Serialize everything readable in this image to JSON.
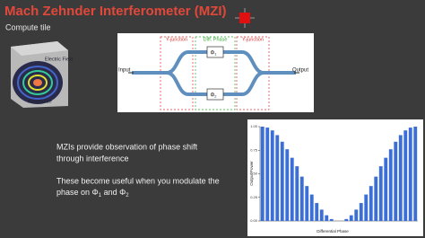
{
  "header": {
    "title": "Mach Zehnder Interferometer (MZI)",
    "subtitle": "Compute tile"
  },
  "waveguide": {
    "field_label": "Electric Field",
    "guide_label": "Waveguide"
  },
  "diagram": {
    "input": "Input",
    "output": "Output",
    "section_1": "Y-junction",
    "section_2": "Diff. Phase",
    "section_3": "Y-junction",
    "phase_1": [
      "Φ",
      "1"
    ],
    "phase_2": [
      "Φ",
      "2"
    ]
  },
  "body": {
    "paragraph_1": [
      "MZIs provide observation of phase shift",
      "through interference"
    ],
    "paragraph_2": [
      "These become useful when you modulate the",
      "phase on Φ",
      "1",
      " and Φ",
      "2"
    ]
  },
  "chart_data": {
    "type": "bar",
    "xlabel": "Differential Phase",
    "ylabel": "Output Power",
    "color": "#3c6ed8",
    "values": [
      1.0,
      0.99,
      0.96,
      0.91,
      0.84,
      0.76,
      0.67,
      0.58,
      0.47,
      0.37,
      0.28,
      0.19,
      0.12,
      0.06,
      0.02,
      0.0,
      0.0,
      0.02,
      0.06,
      0.12,
      0.19,
      0.28,
      0.37,
      0.47,
      0.58,
      0.67,
      0.76,
      0.84,
      0.91,
      0.96,
      0.99,
      1.0
    ],
    "ylim": [
      0,
      1
    ],
    "yticks": [
      {
        "value": 0,
        "label": "0.00"
      },
      {
        "value": 0.25,
        "label": "0.25"
      },
      {
        "value": 0.5,
        "label": "0.50"
      },
      {
        "value": 0.75,
        "label": "0.75"
      },
      {
        "value": 1,
        "label": "1.00"
      }
    ]
  }
}
